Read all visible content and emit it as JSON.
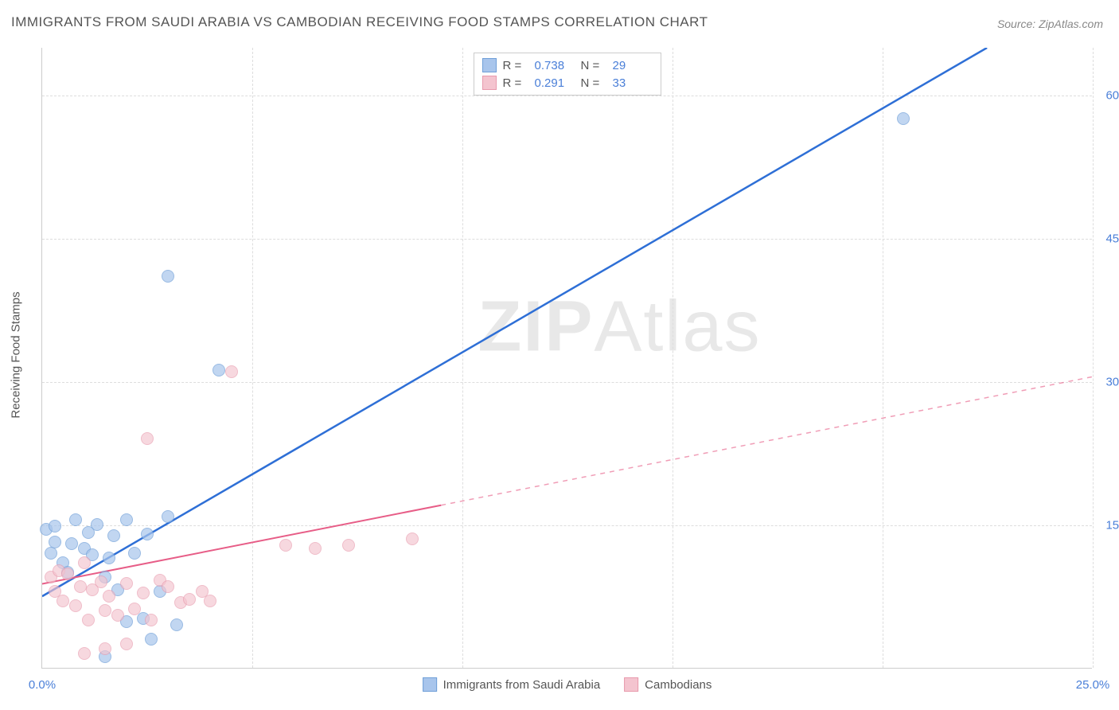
{
  "title": "IMMIGRANTS FROM SAUDI ARABIA VS CAMBODIAN RECEIVING FOOD STAMPS CORRELATION CHART",
  "source_label": "Source: ZipAtlas.com",
  "ylabel": "Receiving Food Stamps",
  "watermark_a": "ZIP",
  "watermark_b": "Atlas",
  "chart": {
    "type": "scatter",
    "background_color": "#ffffff",
    "grid_color": "#dddddd",
    "axis_color": "#cccccc",
    "tick_color": "#4a7fd8",
    "label_color": "#555555",
    "title_fontsize": 17,
    "label_fontsize": 15,
    "xlim": [
      0,
      25
    ],
    "ylim": [
      0,
      65
    ],
    "yticks": [
      15,
      30,
      45,
      60
    ],
    "ytick_labels": [
      "15.0%",
      "30.0%",
      "45.0%",
      "60.0%"
    ],
    "xticks": [
      0,
      5,
      10,
      15,
      20,
      25
    ],
    "xtick_labels": [
      "0.0%",
      "",
      "",
      "",
      "",
      "25.0%"
    ],
    "series": [
      {
        "name": "Immigrants from Saudi Arabia",
        "fill_color": "#a8c5ec",
        "stroke_color": "#6f9fd8",
        "line_color": "#2e6fd6",
        "opacity": 0.7,
        "r_value": "0.738",
        "n_value": "29",
        "marker_radius": 8,
        "points": [
          [
            0.1,
            14.5
          ],
          [
            0.2,
            12.0
          ],
          [
            0.3,
            13.2
          ],
          [
            0.5,
            11.0
          ],
          [
            0.6,
            10.0
          ],
          [
            0.8,
            15.5
          ],
          [
            1.0,
            12.5
          ],
          [
            1.2,
            11.8
          ],
          [
            1.3,
            15.0
          ],
          [
            1.5,
            9.5
          ],
          [
            1.5,
            1.2
          ],
          [
            1.7,
            13.8
          ],
          [
            1.8,
            8.2
          ],
          [
            2.0,
            15.5
          ],
          [
            2.0,
            4.8
          ],
          [
            2.2,
            12.0
          ],
          [
            2.4,
            5.2
          ],
          [
            2.5,
            14.0
          ],
          [
            2.6,
            3.0
          ],
          [
            2.8,
            8.0
          ],
          [
            3.0,
            15.8
          ],
          [
            3.2,
            4.5
          ],
          [
            3.0,
            41.0
          ],
          [
            4.2,
            31.2
          ],
          [
            0.3,
            14.8
          ],
          [
            0.7,
            13.0
          ],
          [
            1.1,
            14.2
          ],
          [
            1.6,
            11.5
          ],
          [
            20.5,
            57.5
          ]
        ],
        "trend": {
          "x1": 0,
          "y1": 7.5,
          "x2": 22.5,
          "y2": 65,
          "dashed_from_x": null
        }
      },
      {
        "name": "Cambodians",
        "fill_color": "#f4c4cf",
        "stroke_color": "#e89aad",
        "line_color": "#e75d87",
        "opacity": 0.65,
        "r_value": "0.291",
        "n_value": "33",
        "marker_radius": 8,
        "points": [
          [
            0.2,
            9.5
          ],
          [
            0.3,
            8.0
          ],
          [
            0.4,
            10.2
          ],
          [
            0.5,
            7.0
          ],
          [
            0.6,
            9.8
          ],
          [
            0.8,
            6.5
          ],
          [
            0.9,
            8.5
          ],
          [
            1.0,
            11.0
          ],
          [
            1.1,
            5.0
          ],
          [
            1.2,
            8.2
          ],
          [
            1.4,
            9.0
          ],
          [
            1.5,
            6.0
          ],
          [
            1.6,
            7.5
          ],
          [
            1.8,
            5.5
          ],
          [
            2.0,
            8.8
          ],
          [
            2.2,
            6.2
          ],
          [
            2.4,
            7.8
          ],
          [
            2.6,
            5.0
          ],
          [
            2.8,
            9.2
          ],
          [
            3.0,
            8.5
          ],
          [
            3.3,
            6.8
          ],
          [
            3.5,
            7.2
          ],
          [
            3.8,
            8.0
          ],
          [
            1.0,
            1.5
          ],
          [
            1.5,
            2.0
          ],
          [
            2.0,
            2.5
          ],
          [
            2.5,
            24.0
          ],
          [
            4.5,
            31.0
          ],
          [
            5.8,
            12.8
          ],
          [
            6.5,
            12.5
          ],
          [
            7.3,
            12.8
          ],
          [
            8.8,
            13.5
          ],
          [
            4.0,
            7.0
          ]
        ],
        "trend": {
          "x1": 0,
          "y1": 8.8,
          "x2": 25,
          "y2": 30.5,
          "dashed_from_x": 9.5
        }
      }
    ]
  },
  "legend_top": {
    "r_label": "R =",
    "n_label": "N ="
  },
  "legend_bottom": {
    "items": [
      "Immigrants from Saudi Arabia",
      "Cambodians"
    ]
  }
}
